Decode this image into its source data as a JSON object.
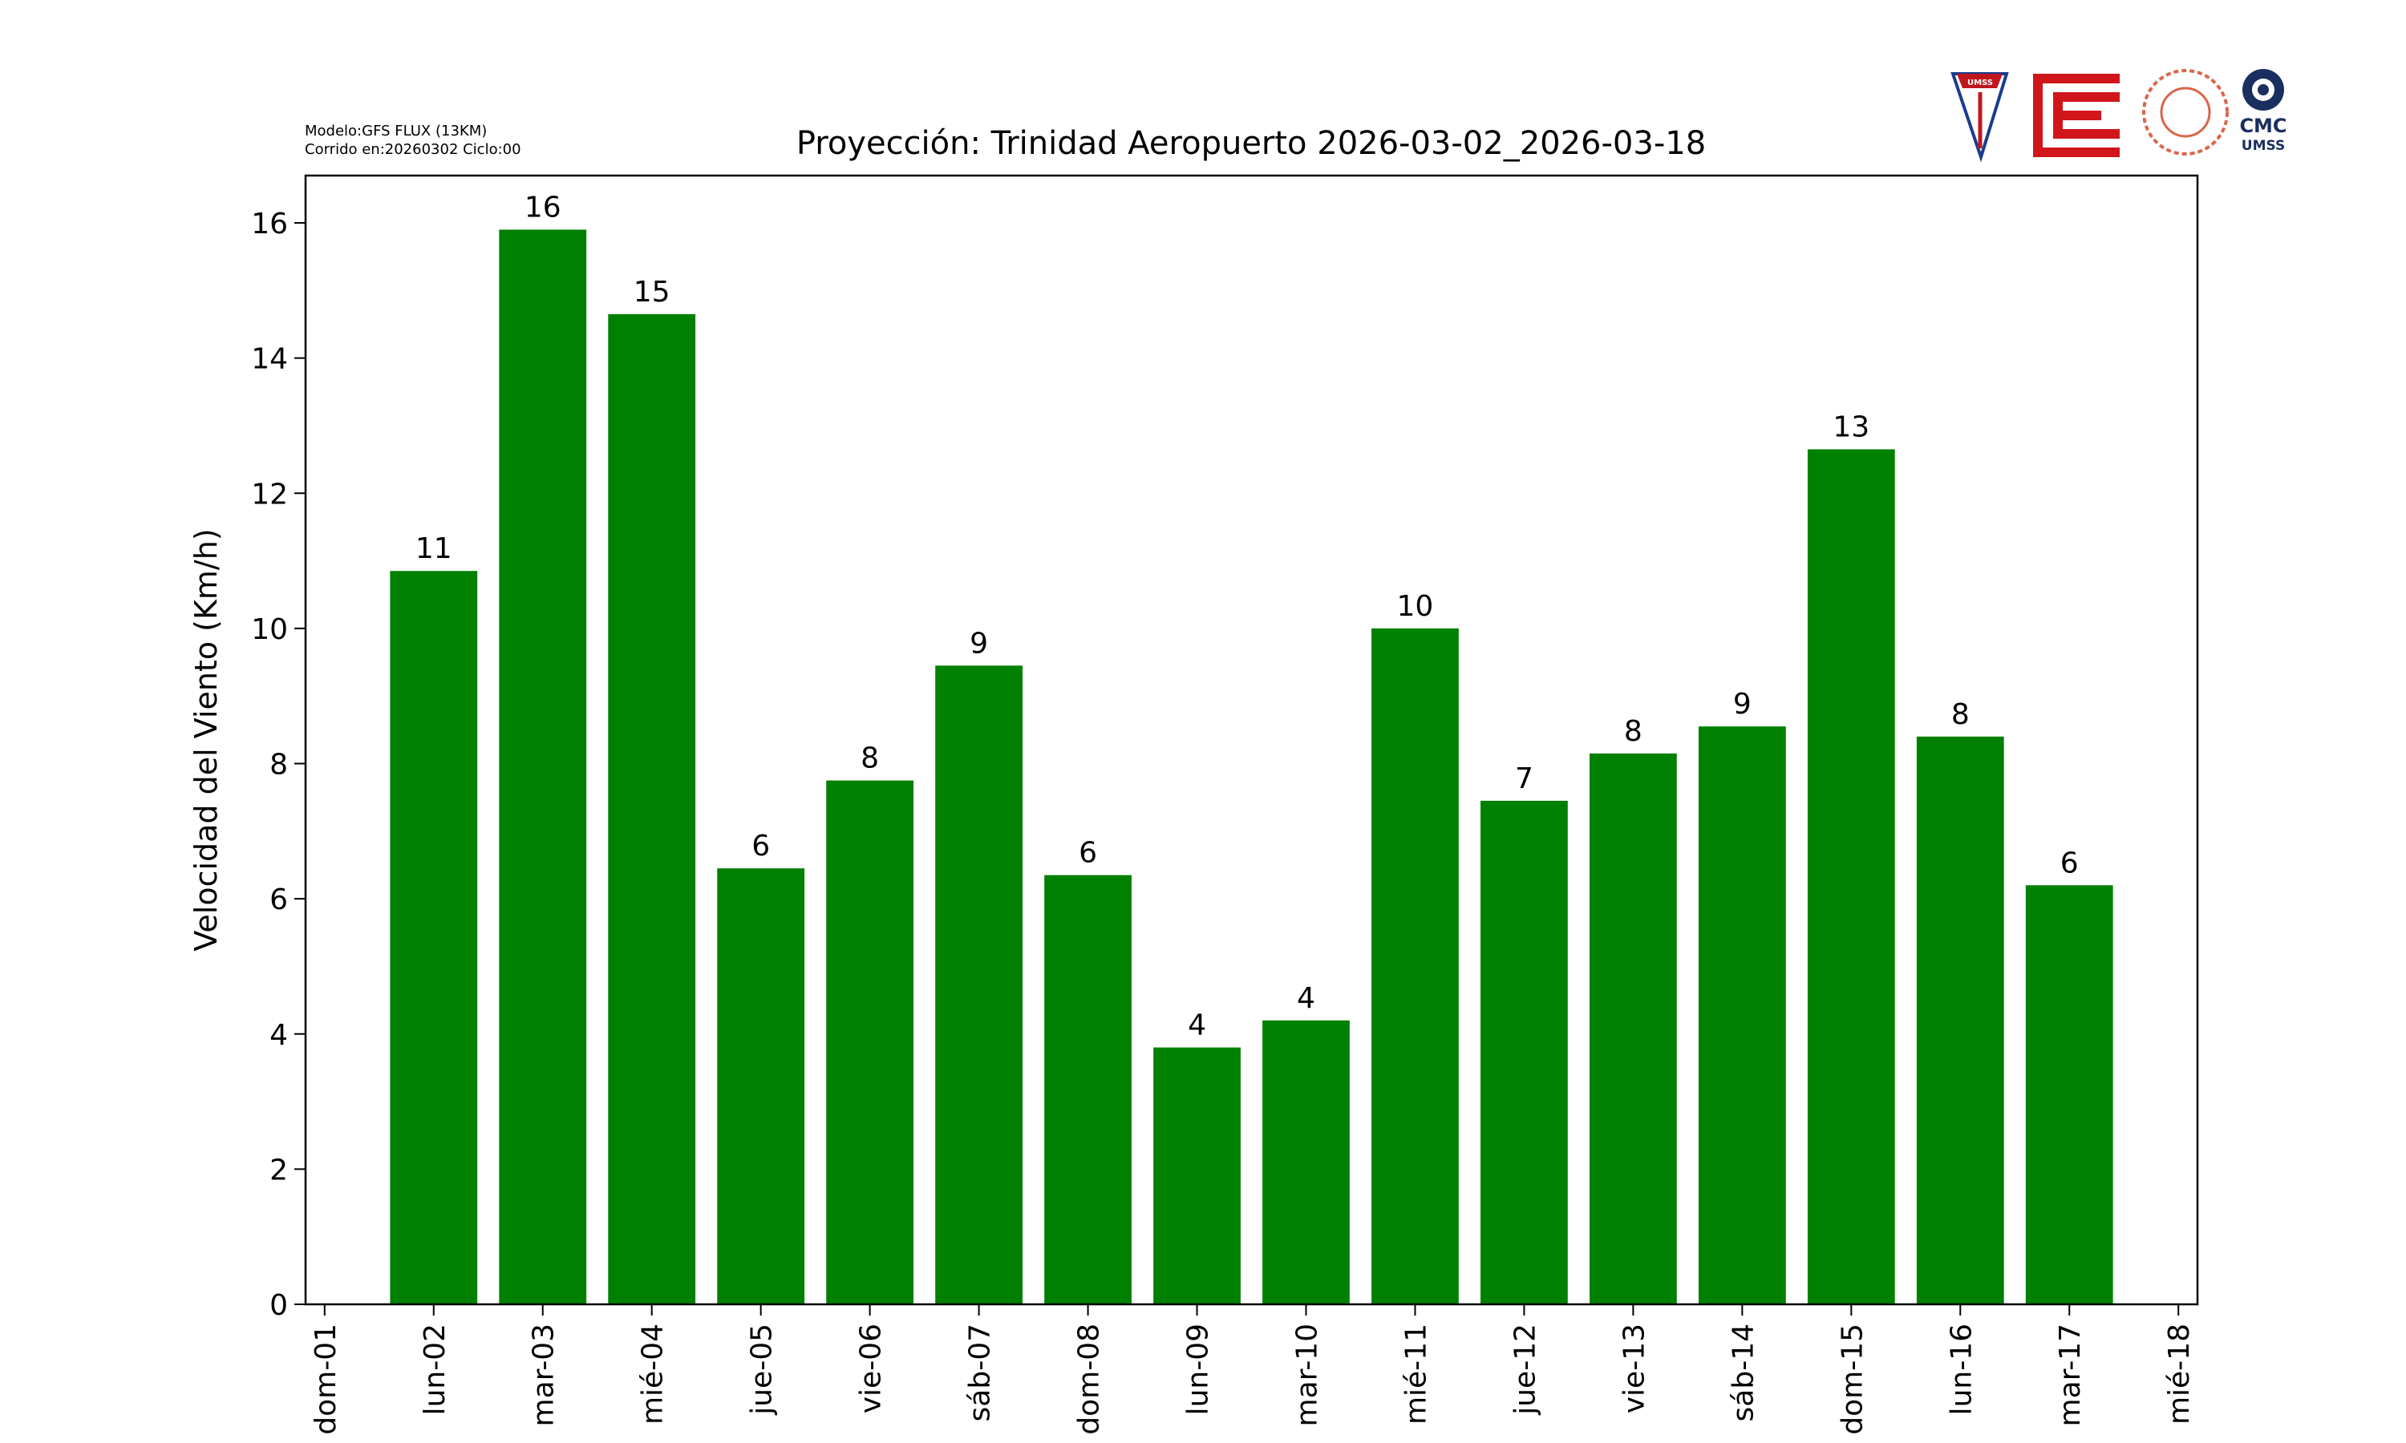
{
  "chart_data": {
    "type": "bar",
    "title": "Proyección: Trinidad Aeropuerto  2026-03-02_2026-03-18",
    "model_note": "Modelo:GFS FLUX (13KM)",
    "run_note": "Corrido en:20260302 Ciclo:00",
    "y_label": "Velocidad del Viento (Km/h)",
    "categories": [
      "dom-01",
      "lun-02",
      "mar-03",
      "mié-04",
      "jue-05",
      "vie-06",
      "sáb-07",
      "dom-08",
      "lun-09",
      "mar-10",
      "mié-11",
      "jue-12",
      "vie-13",
      "sáb-14",
      "dom-15",
      "lun-16",
      "mar-17",
      "mié-18"
    ],
    "values": [
      null,
      10.85,
      15.9,
      14.65,
      6.45,
      7.75,
      9.45,
      6.35,
      3.8,
      4.2,
      10.0,
      7.45,
      8.15,
      8.55,
      12.65,
      8.4,
      6.2,
      null
    ],
    "value_labels": [
      null,
      "11",
      "16",
      "15",
      "6",
      "8",
      "9",
      "6",
      "4",
      "4",
      "10",
      "7",
      "8",
      "9",
      "13",
      "8",
      "6",
      null
    ],
    "color": "#008000",
    "ylim": [
      0,
      16.7
    ],
    "yticks": [
      0,
      2,
      4,
      6,
      8,
      10,
      12,
      14,
      16
    ],
    "grid": false
  },
  "logos": {
    "umss": "UMSS",
    "cmc": "CMC",
    "cmc_sub": "UMSS"
  }
}
